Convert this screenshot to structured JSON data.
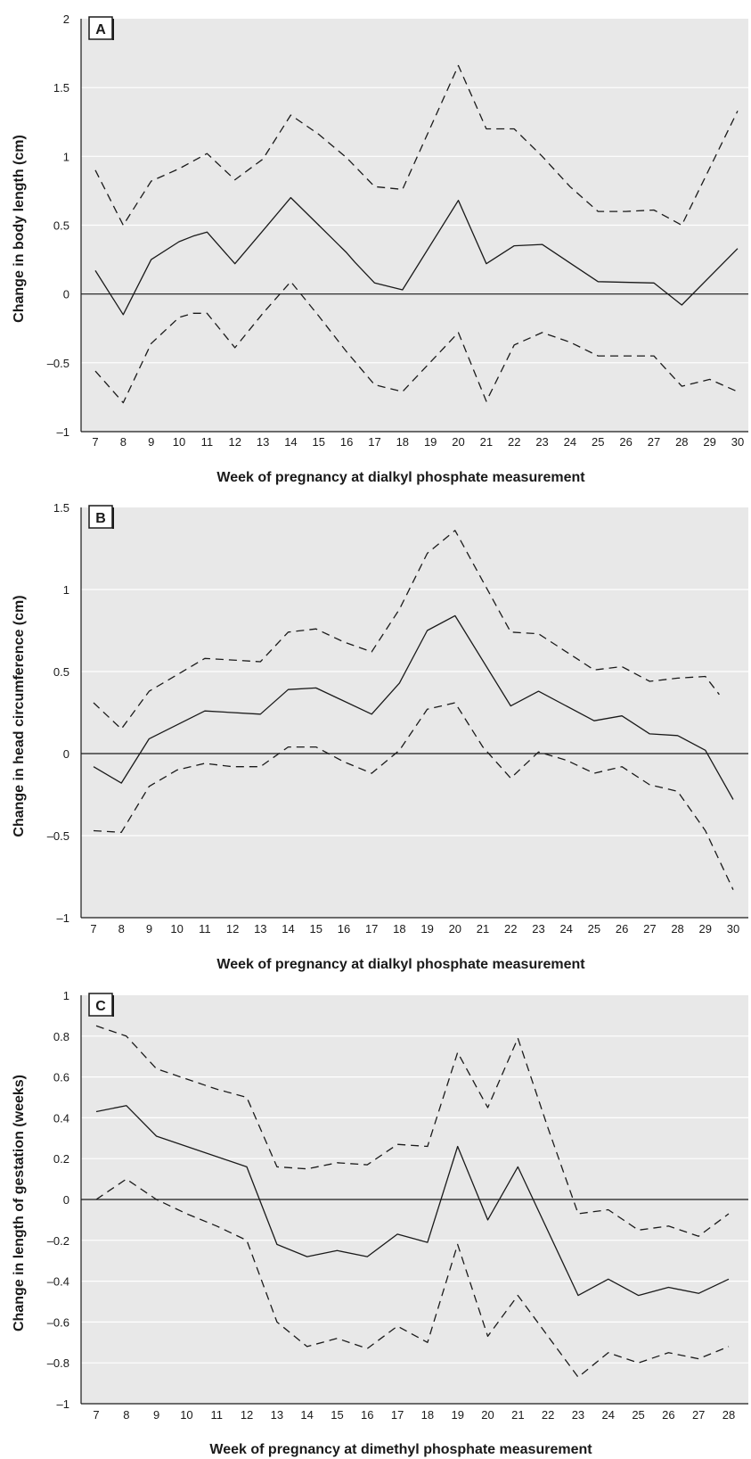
{
  "chart_data": [
    {
      "panel_label": "A",
      "type": "line",
      "xlabel": "Week of pregnancy at dialkyl phosphate measurement",
      "ylabel": "Change in body length (cm)",
      "ylim": [
        -1,
        2
      ],
      "yticks": [
        -1,
        -0.5,
        0,
        0.5,
        1,
        1.5,
        2
      ],
      "ytick_labels": [
        "–1",
        "–0.5",
        "0",
        "0.5",
        "1",
        "1.5",
        "2"
      ],
      "x_ticks": [
        7,
        8,
        9,
        10,
        11,
        12,
        13,
        14,
        15,
        16,
        17,
        18,
        19,
        20,
        21,
        22,
        23,
        24,
        25,
        26,
        27,
        28,
        29,
        30
      ],
      "grid": true,
      "colors": {
        "plot_bg": "#e8e8e8",
        "grid": "#ffffff",
        "line": "#1a1a1a"
      },
      "series": [
        {
          "style": "solid",
          "x": [
            7,
            8,
            9,
            10,
            10.5,
            11,
            12,
            13,
            14,
            15,
            16,
            16.3,
            17,
            18,
            20,
            21,
            22,
            23,
            25,
            27,
            28,
            30
          ],
          "values": [
            0.17,
            -0.15,
            0.25,
            0.38,
            0.42,
            0.45,
            0.22,
            0.46,
            0.7,
            0.5,
            0.3,
            0.23,
            0.08,
            0.03,
            0.68,
            0.22,
            0.35,
            0.36,
            0.09,
            0.08,
            -0.08,
            0.33
          ]
        },
        {
          "style": "dashed",
          "x": [
            7,
            8,
            9,
            10,
            11,
            12,
            13,
            14,
            15,
            16,
            17,
            18,
            20,
            21,
            22,
            23,
            24,
            25,
            26,
            27,
            28,
            30
          ],
          "values": [
            0.9,
            0.5,
            0.82,
            0.91,
            1.02,
            0.83,
            0.98,
            1.3,
            1.16,
            0.99,
            0.78,
            0.76,
            1.66,
            1.2,
            1.2,
            1.0,
            0.78,
            0.6,
            0.6,
            0.61,
            0.5,
            1.33
          ]
        },
        {
          "style": "dashed",
          "x": [
            7,
            8,
            9,
            10,
            10.5,
            11,
            12,
            13,
            14,
            15,
            16,
            17,
            18,
            20,
            21,
            22,
            23,
            24,
            25,
            26,
            27,
            28,
            29,
            30
          ],
          "values": [
            -0.56,
            -0.79,
            -0.36,
            -0.17,
            -0.14,
            -0.14,
            -0.39,
            -0.14,
            0.09,
            -0.16,
            -0.42,
            -0.66,
            -0.71,
            -0.28,
            -0.78,
            -0.37,
            -0.28,
            -0.35,
            -0.45,
            -0.45,
            -0.45,
            -0.67,
            -0.62,
            -0.71
          ]
        }
      ]
    },
    {
      "panel_label": "B",
      "type": "line",
      "xlabel": "Week of pregnancy at dialkyl phosphate measurement",
      "ylabel": "Change in head circumference (cm)",
      "ylim": [
        -1,
        1.5
      ],
      "yticks": [
        -1,
        -0.5,
        0,
        0.5,
        1,
        1.5
      ],
      "ytick_labels": [
        "–1",
        "–0.5",
        "0",
        "0.5",
        "1",
        "1.5"
      ],
      "x_ticks": [
        7,
        8,
        9,
        10,
        11,
        12,
        13,
        14,
        15,
        16,
        17,
        18,
        19,
        20,
        21,
        22,
        23,
        24,
        25,
        26,
        27,
        28,
        29,
        30
      ],
      "grid": true,
      "colors": {
        "plot_bg": "#e8e8e8",
        "grid": "#ffffff",
        "line": "#1a1a1a"
      },
      "series": [
        {
          "style": "solid",
          "x": [
            7,
            8,
            9,
            11,
            13,
            14,
            15,
            17,
            18,
            19,
            20,
            22,
            23,
            25,
            26,
            27,
            28,
            29,
            30
          ],
          "values": [
            -0.08,
            -0.18,
            0.09,
            0.26,
            0.24,
            0.39,
            0.4,
            0.24,
            0.43,
            0.75,
            0.84,
            0.29,
            0.38,
            0.2,
            0.23,
            0.12,
            0.11,
            0.02,
            -0.28
          ]
        },
        {
          "style": "dashed",
          "x": [
            7,
            8,
            9,
            10,
            11,
            12,
            13,
            14,
            15,
            16,
            17,
            18,
            19,
            20,
            21,
            22,
            23,
            24,
            25,
            26,
            27,
            28,
            29,
            29.5
          ],
          "values": [
            0.31,
            0.15,
            0.38,
            0.48,
            0.58,
            0.57,
            0.56,
            0.74,
            0.76,
            0.68,
            0.62,
            0.88,
            1.22,
            1.36,
            1.05,
            0.74,
            0.73,
            0.62,
            0.51,
            0.53,
            0.44,
            0.46,
            0.47,
            0.36
          ]
        },
        {
          "style": "dashed",
          "x": [
            7,
            8,
            9,
            10,
            11,
            12,
            13,
            14,
            15,
            16,
            17,
            18,
            19,
            20,
            21,
            22,
            23,
            24,
            25,
            26,
            27,
            28,
            29,
            30
          ],
          "values": [
            -0.47,
            -0.48,
            -0.2,
            -0.1,
            -0.06,
            -0.08,
            -0.08,
            0.04,
            0.04,
            -0.05,
            -0.12,
            0.02,
            0.27,
            0.31,
            0.04,
            -0.15,
            0.01,
            -0.04,
            -0.12,
            -0.08,
            -0.19,
            -0.23,
            -0.47,
            -0.83
          ]
        }
      ]
    },
    {
      "panel_label": "C",
      "type": "line",
      "xlabel": "Week of pregnancy at dimethyl phosphate measurement",
      "ylabel": "Change in length of gestation (weeks)",
      "ylim": [
        -1,
        1
      ],
      "yticks": [
        -1,
        -0.8,
        -0.6,
        -0.4,
        -0.2,
        0,
        0.2,
        0.4,
        0.6,
        0.8,
        1
      ],
      "ytick_labels": [
        "–1",
        "–0.8",
        "–0.6",
        "–0.4",
        "–0.2",
        "0",
        "0.2",
        "0.4",
        "0.6",
        "0.8",
        "1"
      ],
      "x_ticks": [
        7,
        8,
        9,
        10,
        11,
        12,
        13,
        14,
        15,
        16,
        17,
        18,
        19,
        20,
        21,
        22,
        23,
        24,
        25,
        26,
        27,
        28
      ],
      "grid": true,
      "colors": {
        "plot_bg": "#e8e8e8",
        "grid": "#ffffff",
        "line": "#1a1a1a"
      },
      "series": [
        {
          "style": "solid",
          "x": [
            7,
            8,
            9,
            12,
            13,
            14,
            15,
            16,
            17,
            18,
            19,
            20,
            21,
            23,
            24,
            25,
            26,
            27,
            28
          ],
          "values": [
            0.43,
            0.46,
            0.31,
            0.16,
            -0.22,
            -0.28,
            -0.25,
            -0.28,
            -0.17,
            -0.21,
            0.26,
            -0.1,
            0.16,
            -0.47,
            -0.39,
            -0.47,
            -0.43,
            -0.46,
            -0.39
          ]
        },
        {
          "style": "dashed",
          "x": [
            7,
            8,
            9,
            10,
            11,
            12,
            13,
            14,
            15,
            16,
            17,
            18,
            19,
            20,
            21,
            22,
            23,
            24,
            25,
            26,
            27,
            28
          ],
          "values": [
            0.85,
            0.8,
            0.64,
            0.59,
            0.54,
            0.5,
            0.16,
            0.15,
            0.18,
            0.17,
            0.27,
            0.26,
            0.72,
            0.45,
            0.79,
            0.35,
            -0.07,
            -0.05,
            -0.15,
            -0.13,
            -0.18,
            -0.07
          ]
        },
        {
          "style": "dashed",
          "x": [
            7,
            8,
            9,
            10,
            11,
            12,
            13,
            14,
            15,
            16,
            17,
            18,
            19,
            20,
            21,
            22,
            23,
            24,
            25,
            26,
            27,
            28
          ],
          "values": [
            0.0,
            0.1,
            0.0,
            -0.07,
            -0.13,
            -0.2,
            -0.6,
            -0.72,
            -0.68,
            -0.73,
            -0.62,
            -0.7,
            -0.22,
            -0.67,
            -0.47,
            -0.67,
            -0.87,
            -0.75,
            -0.8,
            -0.75,
            -0.78,
            -0.72
          ]
        }
      ]
    }
  ]
}
